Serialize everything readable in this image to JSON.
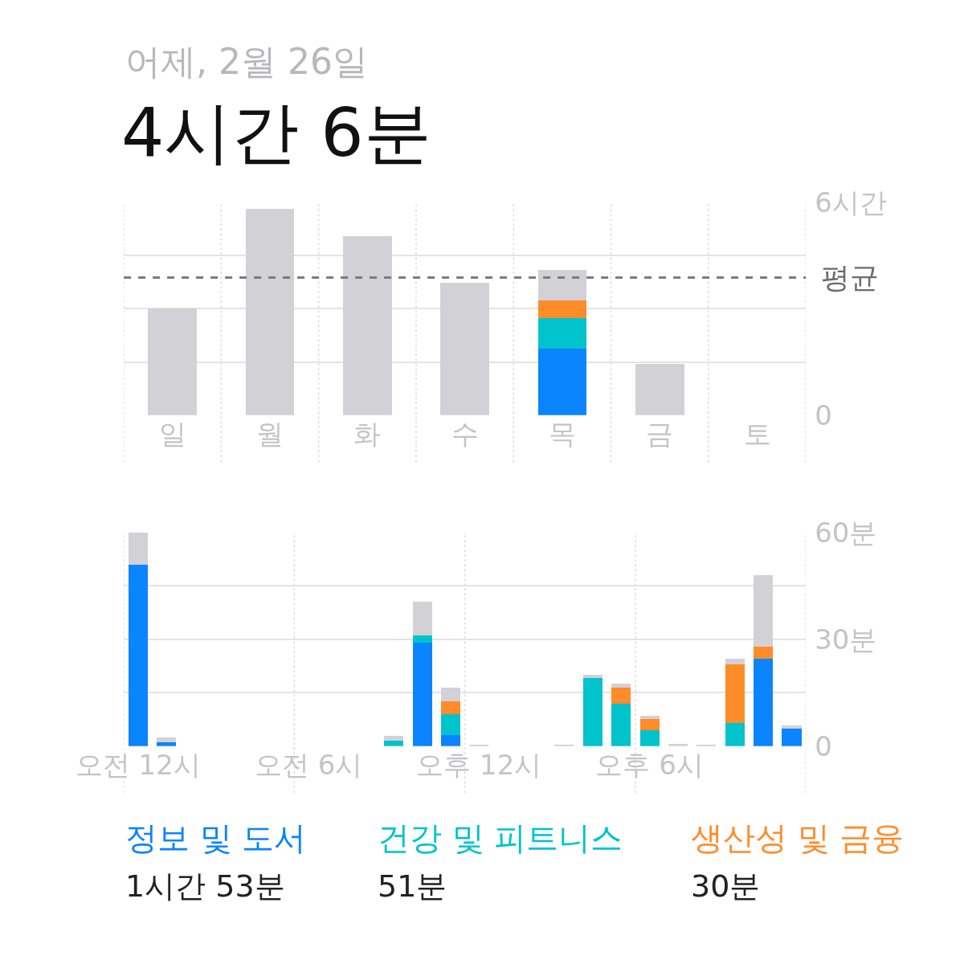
{
  "chart_data": [
    {
      "type": "bar",
      "subtitle": "어제, 2월 26일",
      "title": "4시간 6분",
      "stacked": true,
      "grid": true,
      "legend": false,
      "categories": [
        "일",
        "월",
        "화",
        "수",
        "목",
        "금",
        "토"
      ],
      "series": [
        {
          "color": "#0a84ff",
          "values": [
            null,
            null,
            null,
            null,
            1.88,
            null,
            null
          ]
        },
        {
          "color": "#00c3cc",
          "values": [
            null,
            null,
            null,
            null,
            0.85,
            null,
            null
          ]
        },
        {
          "color": "#ff8c28",
          "values": [
            null,
            null,
            null,
            null,
            0.5,
            null,
            null
          ]
        },
        {
          "color": "#d1d1d6",
          "values": [
            3.0,
            5.82,
            5.04,
            3.74,
            0.87,
            1.45,
            null
          ]
        }
      ],
      "ylim": [
        0,
        6
      ],
      "yticks": [
        0,
        {
          "value": 1.5,
          "label": null
        },
        {
          "value": 3,
          "label": null
        },
        {
          "value": 4.5,
          "label": null
        },
        {
          "value": 6,
          "label": "6시간"
        }
      ],
      "ref_lines": [
        {
          "axis": "y",
          "value": 3.88,
          "label": "평균",
          "color": "#7c7c80",
          "line_style": "dashed"
        }
      ]
    },
    {
      "type": "bar",
      "stacked": true,
      "grid": true,
      "legend": "bottom",
      "categories": [
        "오전 12시",
        null,
        null,
        null,
        null,
        null,
        "오전 6시",
        null,
        null,
        null,
        null,
        null,
        "오후 12시",
        null,
        null,
        null,
        null,
        null,
        "오후 6시",
        null,
        null,
        null,
        null,
        null
      ],
      "series": [
        {
          "name": "정보 및 도서",
          "color": "#0a84ff",
          "values": [
            51,
            1,
            null,
            null,
            null,
            null,
            null,
            null,
            null,
            null,
            29,
            3,
            null,
            null,
            null,
            null,
            null,
            null,
            null,
            null,
            null,
            null,
            24.5,
            5
          ]
        },
        {
          "name": "건강 및 피트니스",
          "color": "#00c3cc",
          "values": [
            null,
            null,
            null,
            null,
            null,
            null,
            null,
            null,
            null,
            1.5,
            2,
            6,
            null,
            null,
            null,
            null,
            19,
            12,
            4.5,
            null,
            null,
            6.5,
            null,
            null
          ]
        },
        {
          "name": "생산성 및 금융",
          "color": "#ff8c28",
          "values": [
            null,
            null,
            null,
            null,
            null,
            null,
            null,
            null,
            null,
            null,
            null,
            3.5,
            null,
            null,
            null,
            null,
            null,
            4.5,
            3,
            null,
            null,
            16.5,
            3.5,
            null
          ]
        },
        {
          "color": "#d1d1d6",
          "values": [
            9,
            1.5,
            null,
            null,
            null,
            null,
            null,
            null,
            null,
            1.3,
            9.5,
            4,
            0.3,
            null,
            null,
            0.3,
            1,
            1,
            1,
            0.5,
            0.3,
            1.5,
            20,
            0.7
          ]
        }
      ],
      "ylim": [
        0,
        60
      ],
      "yticks": [
        0,
        {
          "value": 15,
          "label": null
        },
        {
          "value": 30,
          "label": "30분"
        },
        {
          "value": 45,
          "label": null
        },
        {
          "value": 60,
          "label": "60분"
        }
      ],
      "annotations": [
        "1시간 53분",
        "51분",
        "30분"
      ]
    }
  ]
}
